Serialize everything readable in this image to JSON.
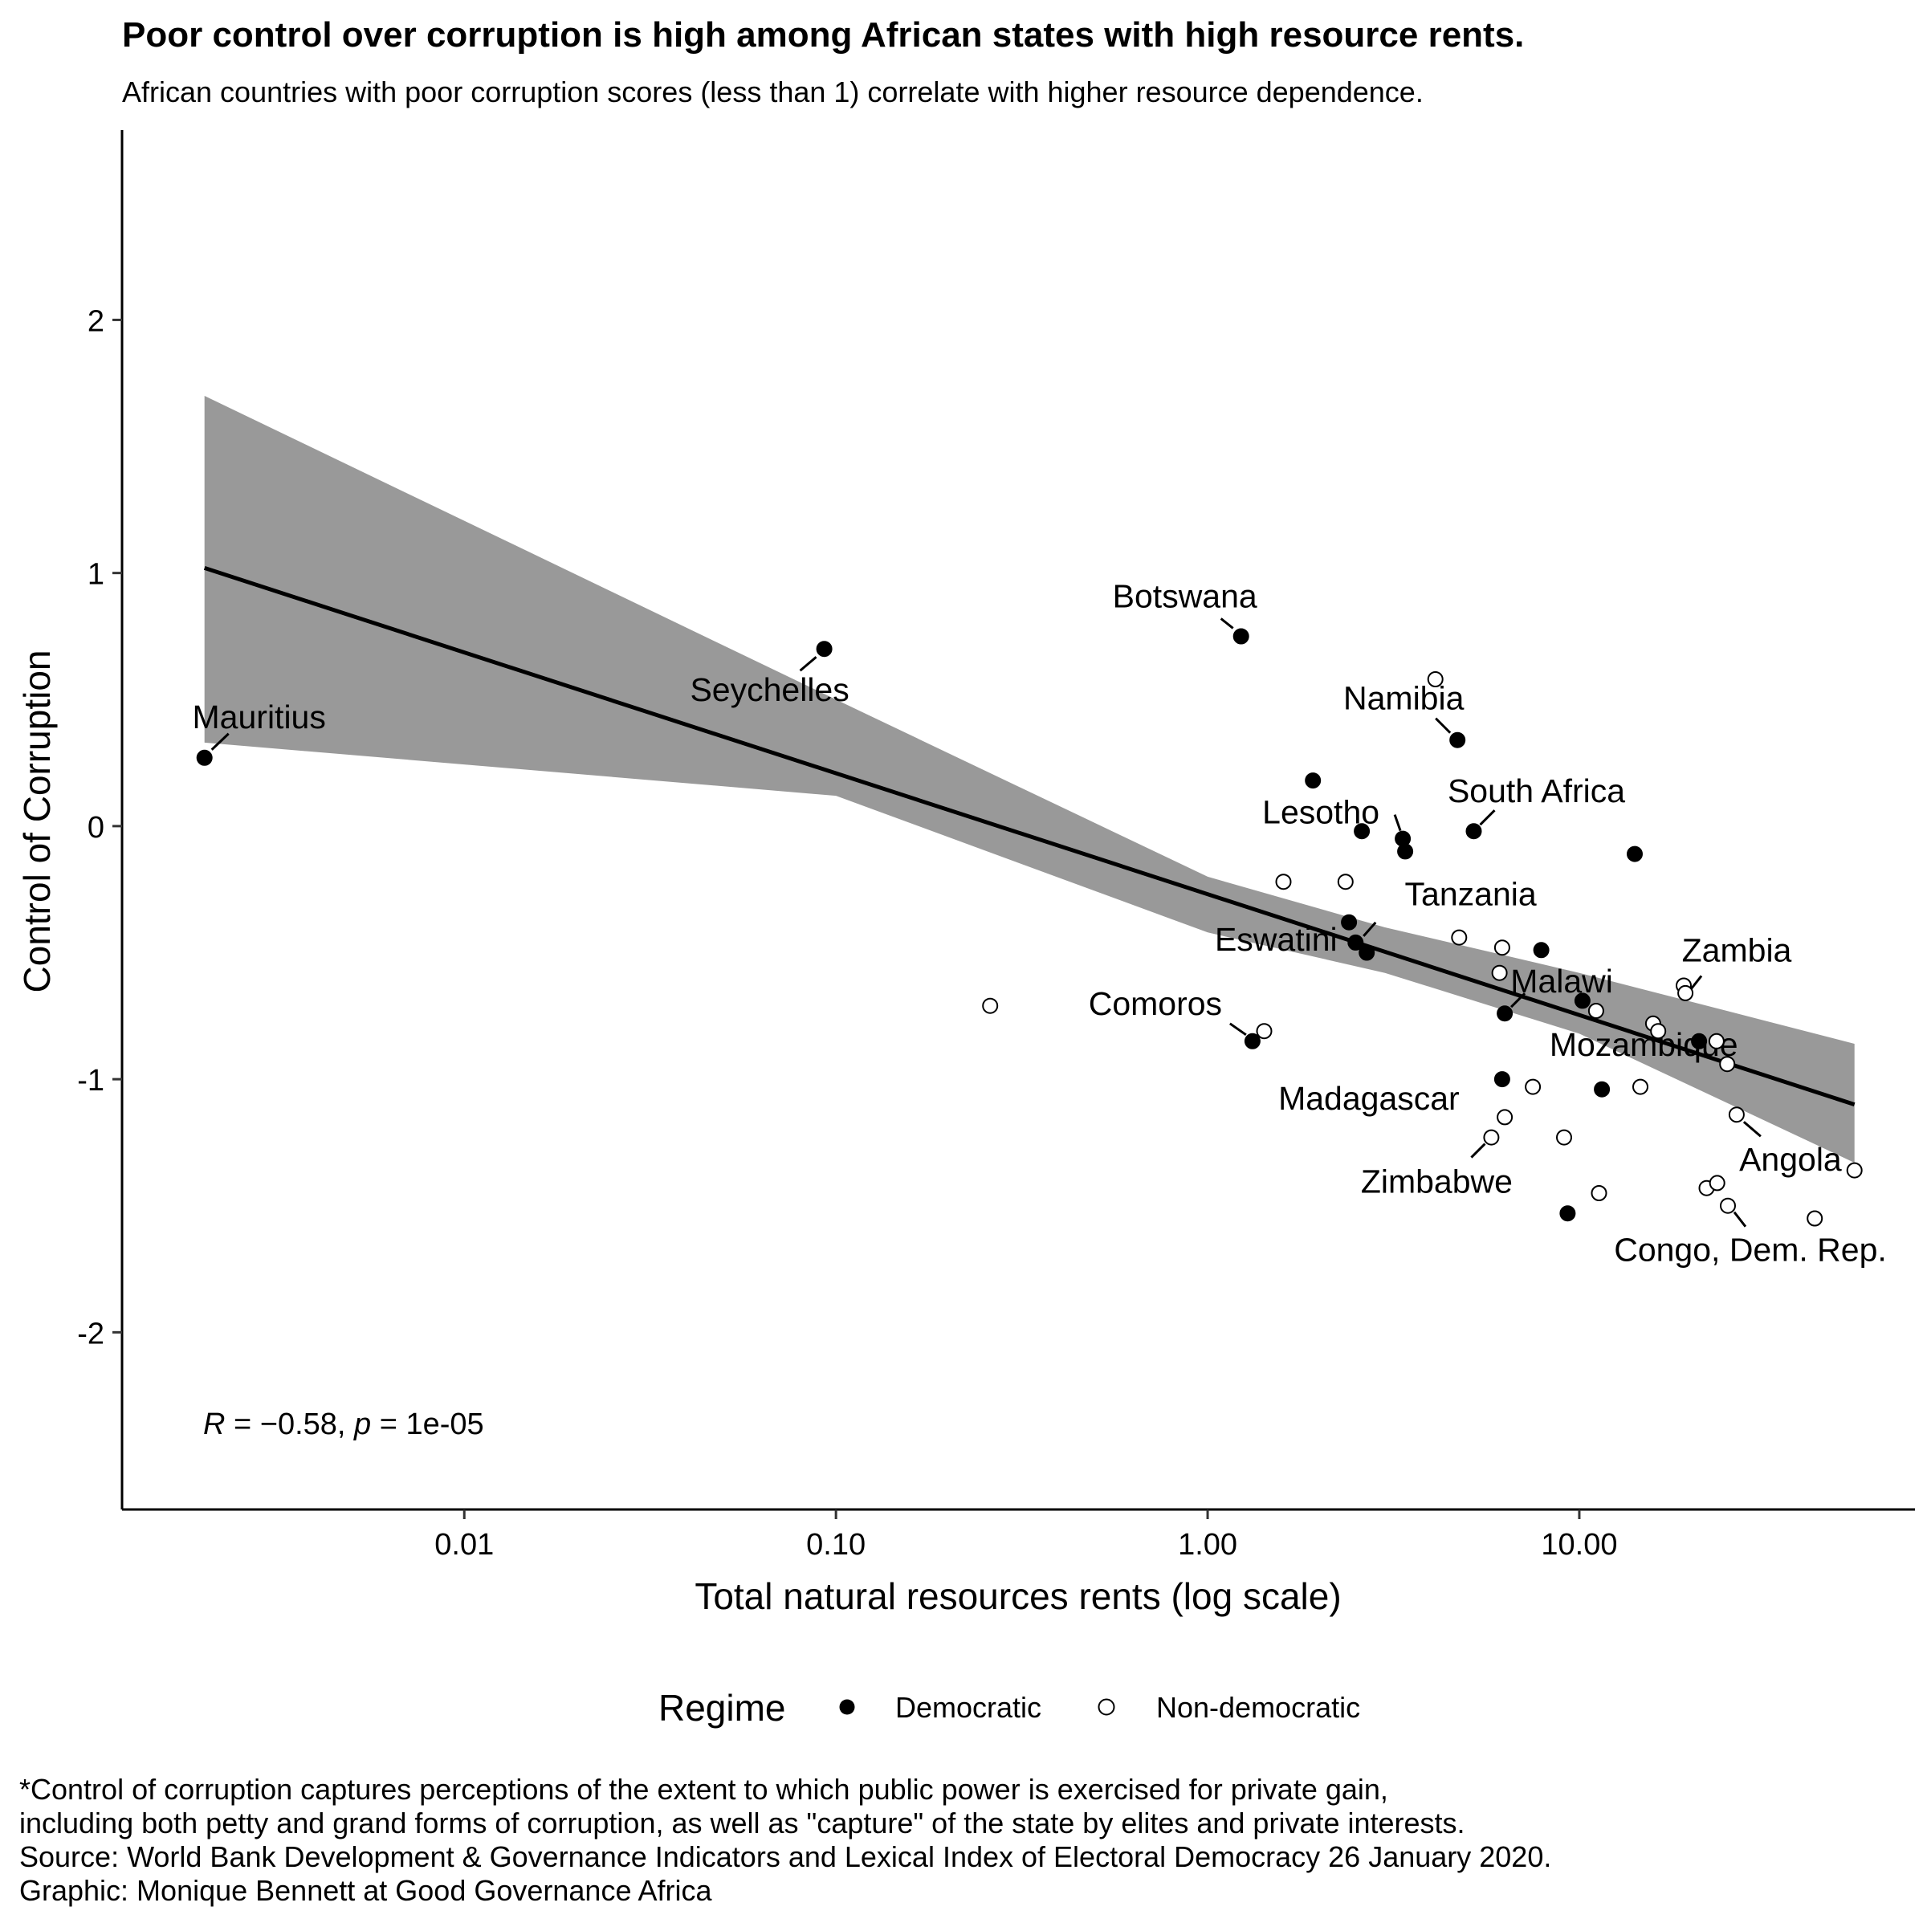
{
  "title": "Poor control over corruption is high among African states with high resource rents.",
  "subtitle": "African countries with poor corruption scores (less than 1) correlate with higher resource dependence.",
  "caption": [
    "*Control of corruption captures perceptions of the extent to which public power is exercised for private gain,",
    "including both petty and grand forms of corruption, as well as \"capture\" of the state by elites and private interests.",
    "Source: World Bank Development & Governance Indicators and Lexical Index of Electoral Democracy 26 January 2020.",
    "Graphic: Monique Bennett at Good Governance Africa"
  ],
  "chart_data": {
    "type": "scatter",
    "xlabel": "Total natural resources rents (log scale)",
    "ylabel": "Control of Corruption",
    "x_scale": "log10",
    "x_ticks": [
      0.01,
      0.1,
      1,
      10
    ],
    "x_tick_labels": [
      "0.01",
      "0.10",
      "1.00",
      "10.00"
    ],
    "xlim": [
      0.0012,
      80
    ],
    "y_ticks": [
      -2,
      -1,
      0,
      1,
      2
    ],
    "y_tick_labels": [
      "-2",
      "-1",
      "0",
      "1",
      "2"
    ],
    "ylim": [
      -2.7,
      2.75
    ],
    "grid": false,
    "legend": {
      "title": "Regime",
      "position": "bottom",
      "entries": [
        {
          "name": "Democratic",
          "marker": "filled"
        },
        {
          "name": "Non-democratic",
          "marker": "open"
        }
      ]
    },
    "annotation": {
      "r_symbol": "R",
      "r_text": " = −0.58, ",
      "p_symbol": "p",
      "p_text": " = 1e-05"
    },
    "fit_line": {
      "x": [
        0.002,
        55
      ],
      "y": [
        1.02,
        -1.1
      ],
      "ci_lower": [
        0.33,
        -1.33
      ],
      "ci_upper": [
        1.7,
        -0.86
      ],
      "ci_knots": [
        {
          "x": 0.002,
          "lo": 0.33,
          "hi": 1.7
        },
        {
          "x": 0.1,
          "lo": 0.12,
          "hi": 0.5
        },
        {
          "x": 1.0,
          "lo": -0.42,
          "hi": -0.2
        },
        {
          "x": 3.0,
          "lo": -0.58,
          "hi": -0.4
        },
        {
          "x": 10.0,
          "lo": -0.82,
          "hi": -0.58
        },
        {
          "x": 55,
          "lo": -1.33,
          "hi": -0.86
        }
      ],
      "color": "#000000",
      "band_color": "#999999"
    },
    "series": [
      {
        "name": "Democratic",
        "marker": "filled",
        "points": [
          {
            "x": 0.002,
            "y": 0.27,
            "label": "Mauritius"
          },
          {
            "x": 0.093,
            "y": 0.7,
            "label": "Seychelles"
          },
          {
            "x": 1.23,
            "y": 0.75,
            "label": "Botswana"
          },
          {
            "x": 1.92,
            "y": 0.18
          },
          {
            "x": 2.6,
            "y": -0.02
          },
          {
            "x": 3.35,
            "y": -0.05,
            "label": "Lesotho"
          },
          {
            "x": 3.4,
            "y": -0.1
          },
          {
            "x": 4.7,
            "y": 0.34,
            "label": "Namibia"
          },
          {
            "x": 5.2,
            "y": -0.02,
            "label": "South Africa"
          },
          {
            "x": 14.1,
            "y": -0.11
          },
          {
            "x": 2.4,
            "y": -0.38
          },
          {
            "x": 2.5,
            "y": -0.46,
            "label": "Eswatini"
          },
          {
            "x": 2.68,
            "y": -0.5
          },
          {
            "x": 7.9,
            "y": -0.49,
            "label": "Tanzania"
          },
          {
            "x": 6.3,
            "y": -0.74,
            "label": "Malawi"
          },
          {
            "x": 10.2,
            "y": -0.69
          },
          {
            "x": 21.0,
            "y": -0.85
          },
          {
            "x": 1.32,
            "y": -0.85,
            "label": "Comoros"
          },
          {
            "x": 6.2,
            "y": -1.0,
            "label": "Madagascar"
          },
          {
            "x": 11.5,
            "y": -1.04
          },
          {
            "x": 9.3,
            "y": -1.53
          }
        ]
      },
      {
        "name": "Non-democratic",
        "marker": "open",
        "points": [
          {
            "x": 0.26,
            "y": -0.71
          },
          {
            "x": 4.1,
            "y": 0.58
          },
          {
            "x": 1.6,
            "y": -0.22
          },
          {
            "x": 2.35,
            "y": -0.22
          },
          {
            "x": 4.75,
            "y": -0.44
          },
          {
            "x": 6.2,
            "y": -0.48
          },
          {
            "x": 6.1,
            "y": -0.58
          },
          {
            "x": 11.1,
            "y": -0.73
          },
          {
            "x": 15.8,
            "y": -0.78
          },
          {
            "x": 16.3,
            "y": -0.81
          },
          {
            "x": 19.1,
            "y": -0.63,
            "label": "Zambia"
          },
          {
            "x": 19.3,
            "y": -0.66
          },
          {
            "x": 23.4,
            "y": -0.85
          },
          {
            "x": 25.0,
            "y": -0.94,
            "label": "Mozambique"
          },
          {
            "x": 1.42,
            "y": -0.81
          },
          {
            "x": 7.5,
            "y": -1.03
          },
          {
            "x": 14.6,
            "y": -1.03
          },
          {
            "x": 6.3,
            "y": -1.15
          },
          {
            "x": 5.8,
            "y": -1.23,
            "label": "Zimbabwe"
          },
          {
            "x": 9.1,
            "y": -1.23
          },
          {
            "x": 26.5,
            "y": -1.14,
            "label": "Angola"
          },
          {
            "x": 55.0,
            "y": -1.36
          },
          {
            "x": 11.3,
            "y": -1.45
          },
          {
            "x": 22.0,
            "y": -1.43
          },
          {
            "x": 23.5,
            "y": -1.41
          },
          {
            "x": 25.1,
            "y": -1.5,
            "label": "Congo, Dem. Rep."
          },
          {
            "x": 43.0,
            "y": -1.55
          }
        ]
      }
    ]
  }
}
